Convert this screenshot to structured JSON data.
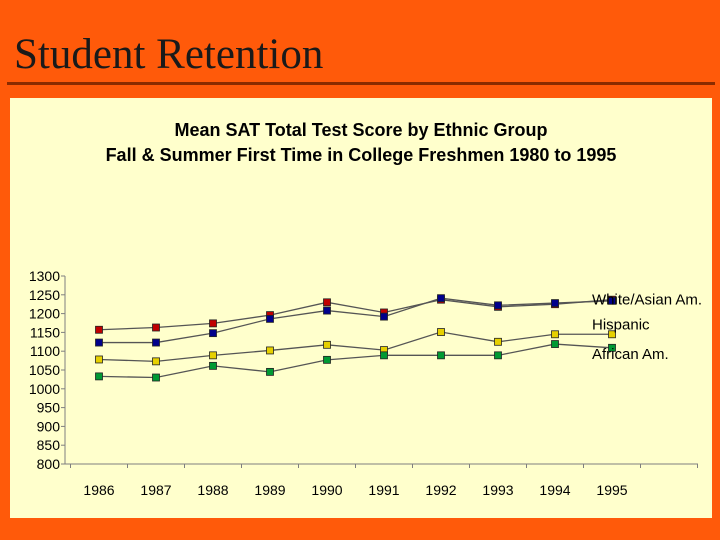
{
  "slide": {
    "title": "Student Retention",
    "background_color": "#FF5A0A",
    "chart_background": "#FFFFCC"
  },
  "chart_data": {
    "type": "line",
    "title": "Mean SAT Total Test Score by Ethnic Group",
    "subtitle": "Fall & Summer First Time in College Freshmen 1980 to 1995",
    "categories": [
      "1986",
      "1987",
      "1988",
      "1989",
      "1990",
      "1991",
      "1992",
      "1993",
      "1994",
      "1995"
    ],
    "ylim": [
      800,
      1300
    ],
    "yticks": [
      "1300",
      "1250",
      "1200",
      "1150",
      "1100",
      "1050",
      "1000",
      "950",
      "900",
      "850",
      "800"
    ],
    "grid": false,
    "series": [
      {
        "name": "White/Asian Am.",
        "color": "#C00000",
        "values": [
          1157,
          1163,
          1174,
          1196,
          1230,
          1203,
          1237,
          1218,
          1225,
          1237
        ]
      },
      {
        "name": "",
        "color": "#00008B",
        "values": [
          1123,
          1123,
          1148,
          1186,
          1208,
          1192,
          1241,
          1222,
          1228,
          1234
        ]
      },
      {
        "name": "Hispanic",
        "color": "#E6D000",
        "values": [
          1078,
          1073,
          1089,
          1102,
          1117,
          1103,
          1151,
          1125,
          1145,
          1145
        ]
      },
      {
        "name": "African Am.",
        "color": "#009933",
        "values": [
          1033,
          1030,
          1061,
          1045,
          1077,
          1089,
          1089,
          1089,
          1119,
          1109
        ]
      }
    ],
    "legend_labels": [
      {
        "text": "White/Asian Am.",
        "series": 0
      },
      {
        "text": "Hispanic",
        "series": 2
      },
      {
        "text": "African Am.",
        "series": 3
      }
    ]
  }
}
